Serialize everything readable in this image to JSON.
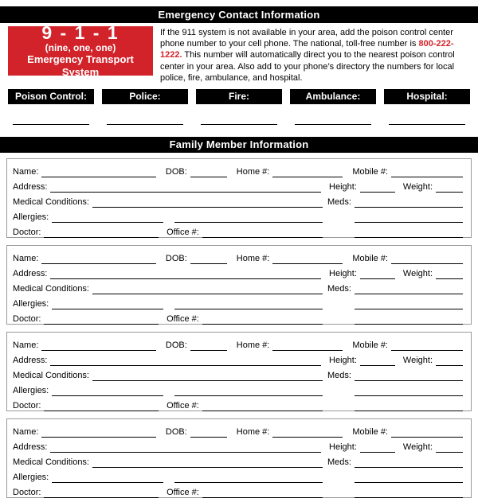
{
  "colors": {
    "accent_red": "#D2232A",
    "bar_black": "#000000"
  },
  "header": {
    "title": "Emergency Contact Information"
  },
  "emergency": {
    "badge": {
      "number": "9 - 1 - 1",
      "words": "(nine, one, one)",
      "caption": "Emergency Transport System"
    },
    "paragraph": {
      "before": "If the 911 system is not available in your area, add the poison control center phone number to your cell phone. The national, toll-free number is ",
      "phone": "800-222-1222.",
      "after": " This number will automatically direct you to the nearest poison control center in your area. Also add to your phone’s directory the numbers for local police, fire, ambulance, and hospital."
    },
    "contacts": [
      {
        "label": "Poison Control:"
      },
      {
        "label": "Police:"
      },
      {
        "label": "Fire:"
      },
      {
        "label": "Ambulance:"
      },
      {
        "label": "Hospital:"
      }
    ]
  },
  "family": {
    "section_title": "Family Member Information",
    "member_count": 4,
    "labels": {
      "name": "Name:",
      "dob": "DOB:",
      "home": "Home #:",
      "mobile": "Mobile #:",
      "address": "Address:",
      "height": "Height:",
      "weight": "Weight:",
      "medical": "Medical Conditions:",
      "meds": "Meds:",
      "allergies": "Allergies:",
      "doctor": "Doctor:",
      "office": "Office #:"
    }
  }
}
